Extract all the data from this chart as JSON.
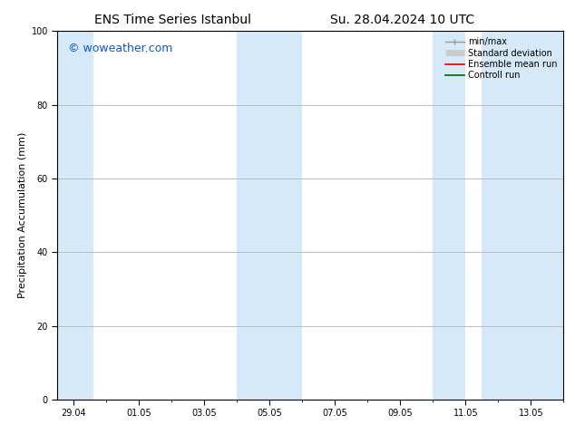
{
  "title_left": "ENS Time Series Istanbul",
  "title_right": "Su. 28.04.2024 10 UTC",
  "ylabel": "Precipitation Accumulation (mm)",
  "ylim": [
    0,
    100
  ],
  "yticks": [
    0,
    20,
    40,
    60,
    80,
    100
  ],
  "xtick_labels": [
    "29.04",
    "01.05",
    "03.05",
    "05.05",
    "07.05",
    "09.05",
    "11.05",
    "13.05"
  ],
  "xtick_positions": [
    0,
    2,
    4,
    6,
    8,
    10,
    12,
    14
  ],
  "xlim": [
    -0.5,
    15.0
  ],
  "shaded_regions": [
    [
      -0.5,
      0.6
    ],
    [
      5.0,
      7.0
    ],
    [
      11.0,
      12.0
    ],
    [
      12.5,
      15.0
    ]
  ],
  "band_color": "#D6E9F8",
  "watermark": "© woweather.com",
  "watermark_color": "#1155CC",
  "legend_entries": [
    {
      "label": "min/max",
      "color": "#999999",
      "lw": 1.0
    },
    {
      "label": "Standard deviation",
      "color": "#CCCCCC",
      "lw": 5.0
    },
    {
      "label": "Ensemble mean run",
      "color": "#DD0000",
      "lw": 1.2
    },
    {
      "label": "Controll run",
      "color": "#006600",
      "lw": 1.2
    }
  ],
  "background_color": "#FFFFFF",
  "grid_color": "#BBBBBB",
  "title_fontsize": 10,
  "tick_fontsize": 7,
  "label_fontsize": 8,
  "legend_fontsize": 7,
  "watermark_fontsize": 9
}
